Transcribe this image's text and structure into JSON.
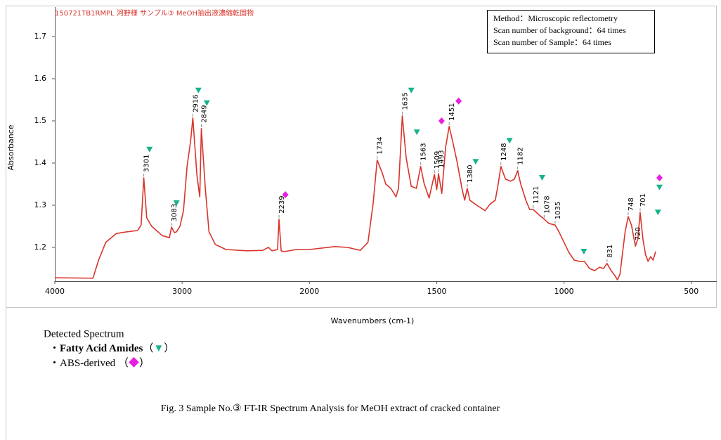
{
  "chart_data": {
    "type": "line",
    "title": "150721TB1RMPL 河野様 サンプル③ MeOH抽出液濃縮乾固物",
    "x_label": "Wavenumbers (cm-1)",
    "y_label": "Absorbance",
    "color": "#d9342b",
    "xlim": [
      4000,
      400
    ],
    "x_scale_break": 2000,
    "x_scale_factor_below_break": 2,
    "xticks": [
      4000,
      3000,
      2000,
      1500,
      1000,
      500
    ],
    "ylim": [
      1.12,
      1.77
    ],
    "yticks": [
      1.2,
      1.3,
      1.4,
      1.5,
      1.6,
      1.7
    ],
    "x": [
      4000,
      3700,
      3656,
      3600,
      3517,
      3433,
      3350,
      3322,
      3301,
      3278,
      3239,
      3156,
      3100,
      3083,
      3060,
      3044,
      3017,
      2989,
      2961,
      2933,
      2916,
      2883,
      2861,
      2849,
      2817,
      2789,
      2739,
      2656,
      2489,
      2367,
      2322,
      2294,
      2250,
      2239,
      2222,
      2200,
      2100,
      2000,
      1900,
      1850,
      1800,
      1770,
      1750,
      1734,
      1715,
      1700,
      1680,
      1660,
      1650,
      1635,
      1620,
      1600,
      1580,
      1563,
      1550,
      1530,
      1509,
      1500,
      1493,
      1480,
      1465,
      1451,
      1435,
      1420,
      1400,
      1390,
      1380,
      1370,
      1350,
      1330,
      1310,
      1290,
      1270,
      1260,
      1248,
      1230,
      1210,
      1195,
      1182,
      1170,
      1150,
      1135,
      1121,
      1100,
      1078,
      1060,
      1035,
      1020,
      1000,
      980,
      960,
      940,
      920,
      900,
      880,
      860,
      845,
      831,
      815,
      800,
      790,
      780,
      770,
      760,
      748,
      735,
      720,
      710,
      701,
      690,
      680,
      670,
      660,
      650,
      640
    ],
    "values": [
      1.128,
      1.127,
      1.17,
      1.212,
      1.233,
      1.237,
      1.24,
      1.253,
      1.365,
      1.27,
      1.25,
      1.228,
      1.223,
      1.248,
      1.235,
      1.237,
      1.25,
      1.287,
      1.392,
      1.453,
      1.507,
      1.37,
      1.32,
      1.482,
      1.337,
      1.237,
      1.207,
      1.195,
      1.192,
      1.193,
      1.2,
      1.192,
      1.195,
      1.267,
      1.192,
      1.19,
      1.195,
      1.195,
      1.202,
      1.2,
      1.193,
      1.212,
      1.303,
      1.407,
      1.378,
      1.35,
      1.34,
      1.32,
      1.34,
      1.512,
      1.412,
      1.345,
      1.34,
      1.392,
      1.353,
      1.317,
      1.373,
      1.337,
      1.375,
      1.328,
      1.437,
      1.487,
      1.445,
      1.403,
      1.337,
      1.312,
      1.34,
      1.312,
      1.303,
      1.295,
      1.287,
      1.303,
      1.312,
      1.345,
      1.392,
      1.362,
      1.357,
      1.362,
      1.382,
      1.35,
      1.312,
      1.29,
      1.29,
      1.278,
      1.267,
      1.257,
      1.253,
      1.237,
      1.212,
      1.187,
      1.17,
      1.167,
      1.167,
      1.15,
      1.145,
      1.153,
      1.15,
      1.162,
      1.145,
      1.133,
      1.123,
      1.137,
      1.187,
      1.237,
      1.273,
      1.253,
      1.203,
      1.22,
      1.283,
      1.22,
      1.183,
      1.167,
      1.178,
      1.17,
      1.19
    ],
    "peaks": [
      {
        "wavenumber": 3301,
        "absorbance": 1.365
      },
      {
        "wavenumber": 3083,
        "absorbance": 1.248
      },
      {
        "wavenumber": 2916,
        "absorbance": 1.507
      },
      {
        "wavenumber": 2849,
        "absorbance": 1.482
      },
      {
        "wavenumber": 2239,
        "absorbance": 1.267
      },
      {
        "wavenumber": 1734,
        "absorbance": 1.407
      },
      {
        "wavenumber": 1635,
        "absorbance": 1.512
      },
      {
        "wavenumber": 1563,
        "absorbance": 1.392
      },
      {
        "wavenumber": 1509,
        "absorbance": 1.373
      },
      {
        "wavenumber": 1493,
        "absorbance": 1.375
      },
      {
        "wavenumber": 1451,
        "absorbance": 1.487
      },
      {
        "wavenumber": 1380,
        "absorbance": 1.34
      },
      {
        "wavenumber": 1248,
        "absorbance": 1.392
      },
      {
        "wavenumber": 1182,
        "absorbance": 1.382
      },
      {
        "wavenumber": 1121,
        "absorbance": 1.29
      },
      {
        "wavenumber": 1078,
        "absorbance": 1.267
      },
      {
        "wavenumber": 1035,
        "absorbance": 1.253
      },
      {
        "wavenumber": 831,
        "absorbance": 1.162
      },
      {
        "wavenumber": 748,
        "absorbance": 1.273
      },
      {
        "wavenumber": 720,
        "absorbance": 1.203
      },
      {
        "wavenumber": 701,
        "absorbance": 1.283
      }
    ],
    "marker_series": [
      {
        "name": "Fatty Acid Amides",
        "bold": true,
        "bullet": "・",
        "open": "（",
        "symbol": "▼",
        "close": "）",
        "shape": "triangle",
        "color": "#17b38c",
        "x": [
          3256,
          3044,
          2872,
          2806,
          1600,
          1578,
          1347,
          1214,
          1086,
          922,
          625,
          631
        ],
        "values": [
          1.432,
          1.305,
          1.572,
          1.542,
          1.572,
          1.473,
          1.403,
          1.453,
          1.365,
          1.19,
          1.342,
          1.283
        ]
      },
      {
        "name": "ABS-derived",
        "bold": false,
        "bullet": "・",
        "open": " （",
        "symbol": "◆",
        "close": "）",
        "shape": "diamond",
        "color": "#e81ee0",
        "x": [
          2189,
          1481,
          1414,
          625
        ],
        "values": [
          1.325,
          1.5,
          1.547,
          1.365
        ]
      }
    ],
    "legend_title": "Detected Spectrum",
    "info_box": [
      "Method：Microscopic reflectometry",
      "Scan number of background：64 times",
      "Scan number of Sample：64 times"
    ],
    "caption": "Fig. 3   Sample No.③ FT-IR Spectrum Analysis for MeOH extract of cracked container"
  }
}
